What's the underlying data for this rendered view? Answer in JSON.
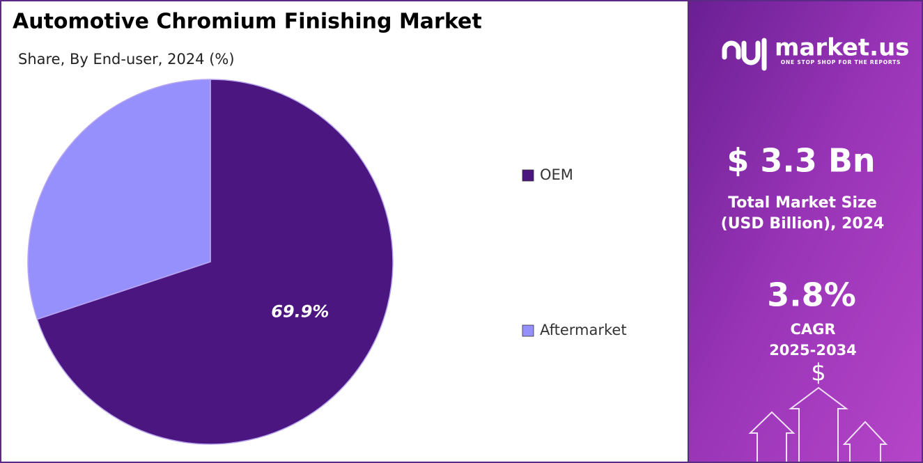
{
  "chart_data": {
    "type": "pie",
    "title": "Automotive Chromium Finishing Market",
    "subtitle": "Share, By End-user, 2024 (%)",
    "categories": [
      "OEM",
      "Aftermarket"
    ],
    "values": [
      69.9,
      30.1
    ],
    "value_labels": [
      "69.9%",
      null
    ],
    "colors": [
      "#4b1680",
      "#9690fd"
    ],
    "legend": "right"
  },
  "panel": {
    "brand": "market.us",
    "tagline": "ONE STOP SHOP FOR THE REPORTS",
    "market_size": "$ 3.3 Bn",
    "market_size_label": "Total Market Size (USD Billion), 2024",
    "cagr": "3.8%",
    "cagr_label": "CAGR",
    "cagr_period": "2025-2034"
  }
}
